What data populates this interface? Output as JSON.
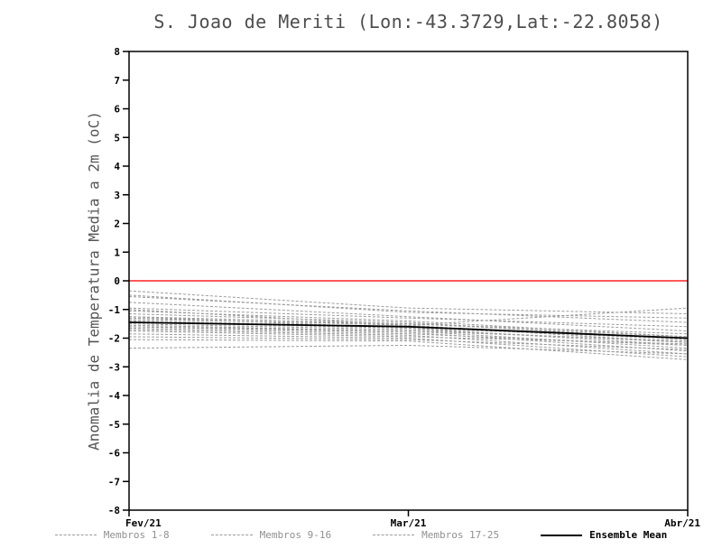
{
  "chart_data": {
    "type": "line",
    "title": "S. Joao de Meriti (Lon:-43.3729,Lat:-22.8058)",
    "ylabel": "Anomalia de Temperatura Media a 2m (oC)",
    "xlabel": "",
    "x": [
      "Fev/21",
      "Mar/21",
      "Abr/21"
    ],
    "ylim": [
      -8,
      8
    ],
    "y_tick_step": 1,
    "grid": false,
    "legend_position": "bottom",
    "colors": {
      "zero_line": "#ff2222",
      "member": "#9b9b9b",
      "mean": "#000000",
      "frame": "#000000"
    },
    "zero_line": {
      "y": 0
    },
    "legend": [
      {
        "label": "Membros 1-8",
        "style": "dashed"
      },
      {
        "label": "Membros 9-16",
        "style": "dashed"
      },
      {
        "label": "Membros 17-25",
        "style": "dashed"
      },
      {
        "label": "Ensemble Mean",
        "style": "solid"
      }
    ],
    "series": [
      {
        "name": "Membro 1",
        "group": "1-8",
        "values": [
          -0.35,
          -0.95,
          -1.15
        ]
      },
      {
        "name": "Membro 2",
        "group": "1-8",
        "values": [
          -0.55,
          -1.05,
          -1.45
        ]
      },
      {
        "name": "Membro 3",
        "group": "1-8",
        "values": [
          -0.75,
          -1.25,
          -1.75
        ]
      },
      {
        "name": "Membro 4",
        "group": "1-8",
        "values": [
          -0.95,
          -1.3,
          -1.6
        ]
      },
      {
        "name": "Membro 5",
        "group": "1-8",
        "values": [
          -1.05,
          -1.4,
          -1.95
        ]
      },
      {
        "name": "Membro 6",
        "group": "1-8",
        "values": [
          -1.15,
          -1.45,
          -2.05
        ]
      },
      {
        "name": "Membro 7",
        "group": "1-8",
        "values": [
          -1.25,
          -1.5,
          -1.85
        ]
      },
      {
        "name": "Membro 8",
        "group": "1-8",
        "values": [
          -1.3,
          -1.55,
          -2.15
        ]
      },
      {
        "name": "Membro 9",
        "group": "9-16",
        "values": [
          -1.35,
          -1.5,
          -1.95
        ]
      },
      {
        "name": "Membro 10",
        "group": "9-16",
        "values": [
          -1.4,
          -1.6,
          -2.05
        ]
      },
      {
        "name": "Membro 11",
        "group": "9-16",
        "values": [
          -1.45,
          -1.65,
          -2.25
        ]
      },
      {
        "name": "Membro 12",
        "group": "9-16",
        "values": [
          -1.5,
          -1.7,
          -2.15
        ]
      },
      {
        "name": "Membro 13",
        "group": "9-16",
        "values": [
          -1.55,
          -1.75,
          -2.35
        ]
      },
      {
        "name": "Membro 14",
        "group": "9-16",
        "values": [
          -1.6,
          -1.75,
          -2.1
        ]
      },
      {
        "name": "Membro 15",
        "group": "9-16",
        "values": [
          -1.6,
          -1.8,
          -2.45
        ]
      },
      {
        "name": "Membro 16",
        "group": "9-16",
        "values": [
          -1.65,
          -1.85,
          -2.25
        ]
      },
      {
        "name": "Membro 17",
        "group": "17-25",
        "values": [
          -1.7,
          -1.9,
          -2.55
        ]
      },
      {
        "name": "Membro 18",
        "group": "17-25",
        "values": [
          -1.75,
          -1.95,
          -2.2
        ]
      },
      {
        "name": "Membro 19",
        "group": "17-25",
        "values": [
          -1.85,
          -2.0,
          -2.65
        ]
      },
      {
        "name": "Membro 20",
        "group": "17-25",
        "values": [
          -1.95,
          -2.05,
          -2.4
        ]
      },
      {
        "name": "Membro 21",
        "group": "17-25",
        "values": [
          -2.05,
          -2.1,
          -2.75
        ]
      },
      {
        "name": "Membro 22",
        "group": "17-25",
        "values": [
          -2.35,
          -2.25,
          -2.55
        ]
      },
      {
        "name": "Membro 23",
        "group": "17-25",
        "values": [
          -1.0,
          -1.55,
          -0.95
        ]
      },
      {
        "name": "Membro 24",
        "group": "17-25",
        "values": [
          -0.5,
          -1.1,
          -1.3
        ]
      },
      {
        "name": "Membro 25",
        "group": "17-25",
        "values": [
          -1.25,
          -1.65,
          -2.0
        ]
      },
      {
        "name": "Ensemble Mean",
        "group": "mean",
        "values": [
          -1.45,
          -1.6,
          -2.0
        ]
      }
    ]
  }
}
